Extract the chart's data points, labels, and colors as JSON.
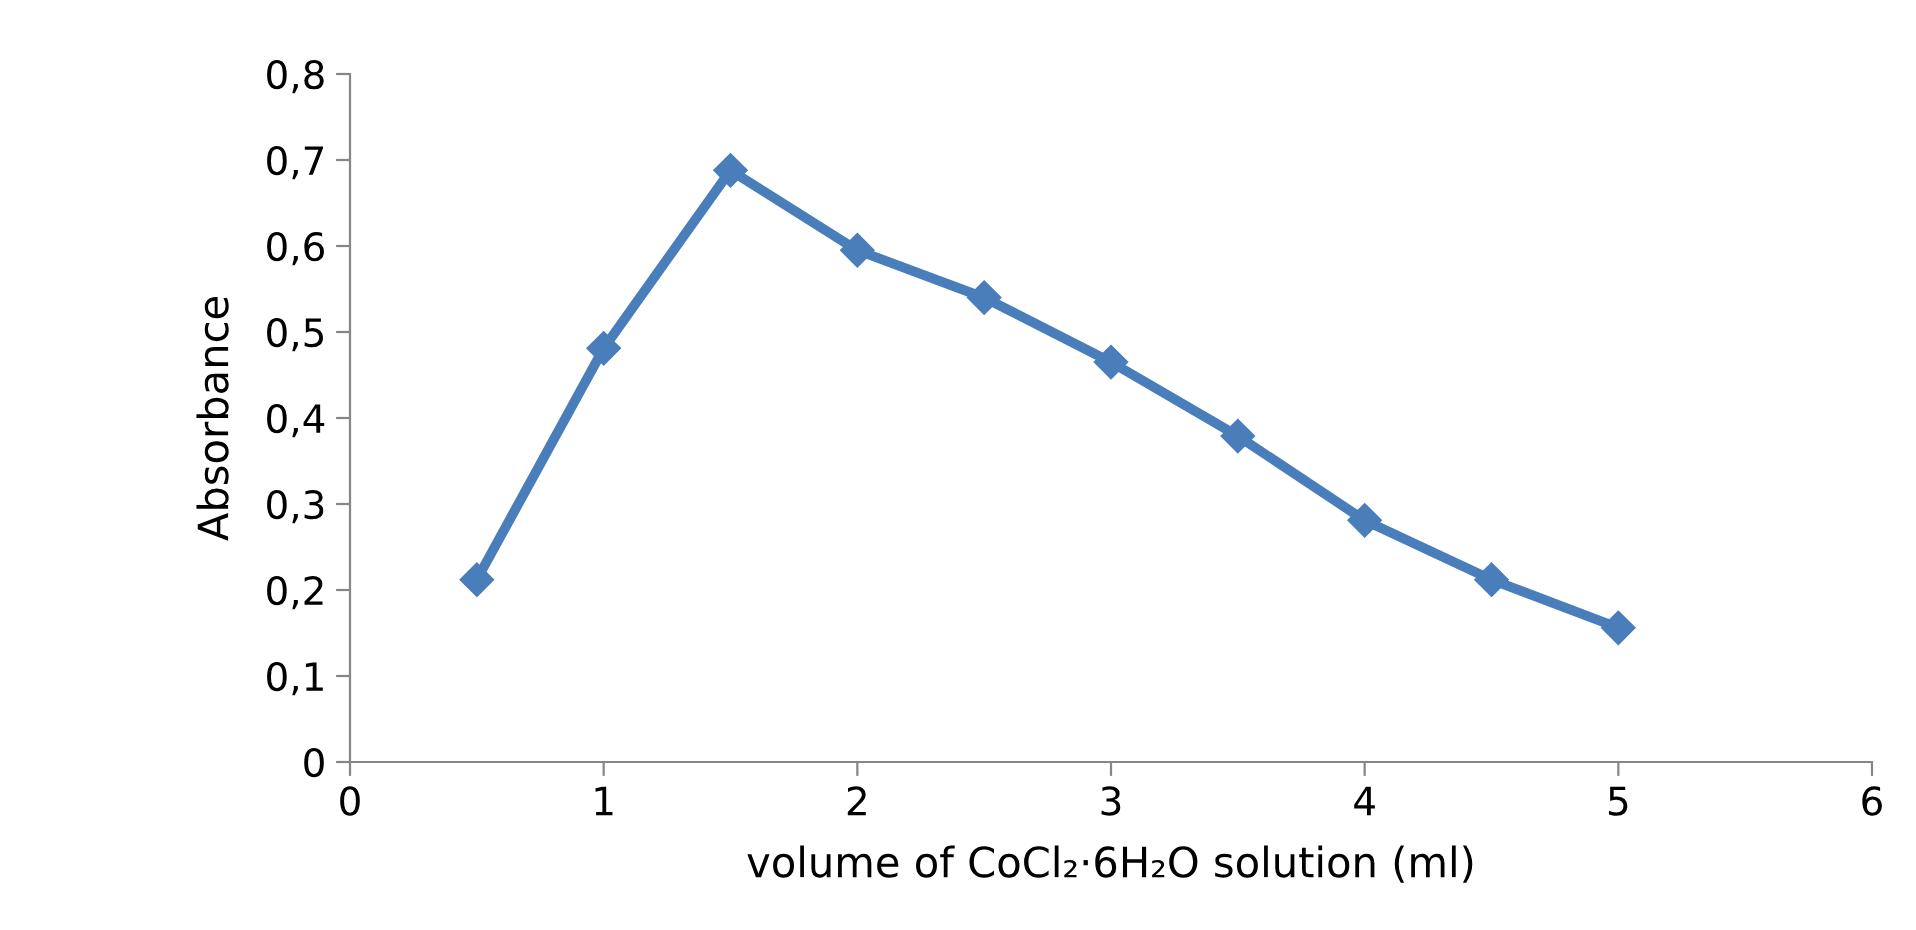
{
  "chart_data": {
    "type": "line",
    "xlabel": "volume of CoCl₂·6H₂O solution (ml)",
    "ylabel": "Absorbance",
    "x": [
      0.5,
      1,
      1.5,
      2,
      2.5,
      3,
      3.5,
      4,
      4.5,
      5
    ],
    "series": [
      {
        "color": "#4a7ebb",
        "values": [
          0.212,
          0.481,
          0.688,
          0.595,
          0.54,
          0.465,
          0.379,
          0.281,
          0.212,
          0.156
        ]
      }
    ],
    "xlim": [
      0,
      6
    ],
    "xticks": [
      0,
      1,
      2,
      3,
      4,
      5,
      6
    ],
    "ylim": [
      0,
      0.8
    ],
    "yticks": [
      0,
      {
        "value": 0.1,
        "label": "0,1"
      },
      {
        "value": 0.2,
        "label": "0,2"
      },
      {
        "value": 0.3,
        "label": "0,3"
      },
      {
        "value": 0.4,
        "label": "0,4"
      },
      {
        "value": 0.5,
        "label": "0,5"
      },
      {
        "value": 0.6,
        "label": "0,6"
      },
      {
        "value": 0.7,
        "label": "0,7"
      },
      {
        "value": 0.8,
        "label": "0,8"
      }
    ],
    "grid": false,
    "marker": "diamond",
    "line_style": "solid"
  }
}
